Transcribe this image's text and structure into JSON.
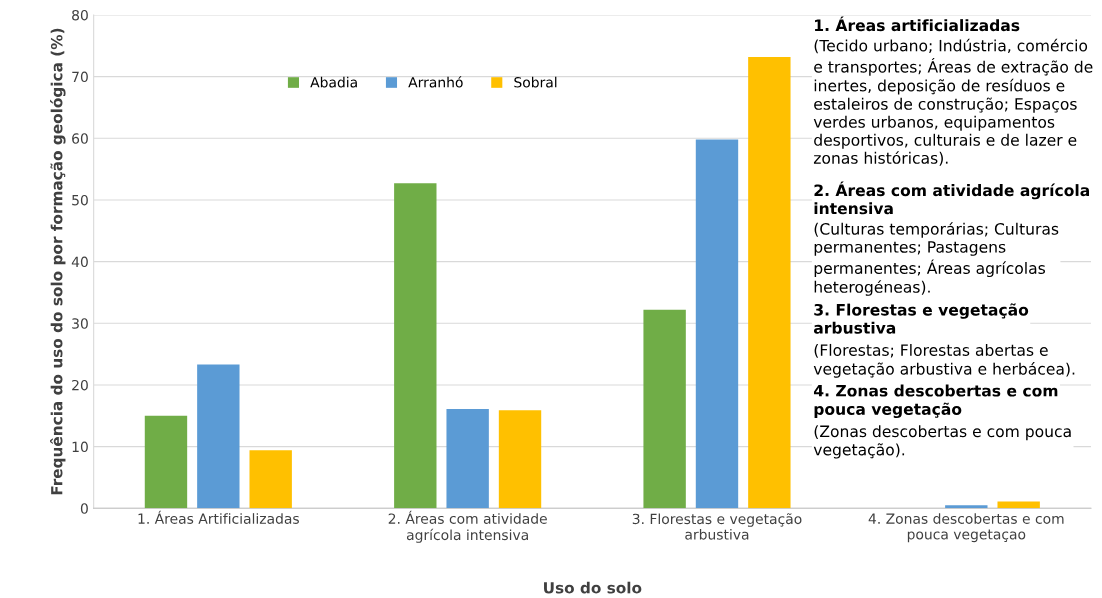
{
  "chart_data": {
    "type": "bar",
    "ylabel": "Frequência do uso do solo por formação geológica (%)",
    "xlabel": "Uso do solo",
    "categories": [
      "1. Áreas Artificializadas",
      "2. Áreas com atividade agrícola intensiva",
      "3. Florestas e vegetação arbustiva",
      "4. Zonas descobertas e com pouca vegetaçao"
    ],
    "series": [
      {
        "name": "Abadia",
        "color": "#70ad47",
        "values": [
          15.0,
          52.7,
          32.2,
          0
        ]
      },
      {
        "name": "Arranhó",
        "color": "#5b9bd5",
        "values": [
          23.3,
          16.1,
          59.8,
          0.5
        ]
      },
      {
        "name": "Sobral",
        "color": "#ffc000",
        "values": [
          9.4,
          15.9,
          73.2,
          1.1
        ]
      }
    ],
    "ylim": [
      0,
      80
    ],
    "yticks": [
      0,
      10,
      20,
      30,
      40,
      50,
      60,
      70,
      80
    ],
    "grid": "y",
    "legend": "top",
    "annotations": [
      "1. Áreas artificializadas",
      "(Tecido urbano; Indústria, comércio e transportes; Áreas de extração de inertes, deposição de resíduos e estaleiros de construção; Espaços verdes urbanos, equipamentos desportivos, culturais e de lazer e zonas históricas).",
      "2. Áreas com atividade agrícola intensiva",
      "(Culturas temporárias; Culturas permanentes; Pastagens permanentes; Áreas agrícolas heterogéneas).",
      "3. Florestas e vegetação arbustiva",
      "(Florestas; Florestas abertas e vegetação arbustiva e herbácea).",
      "4. Zonas descobertas e com pouca vegetação",
      "(Zonas descobertas e com pouca vegetação)."
    ]
  }
}
